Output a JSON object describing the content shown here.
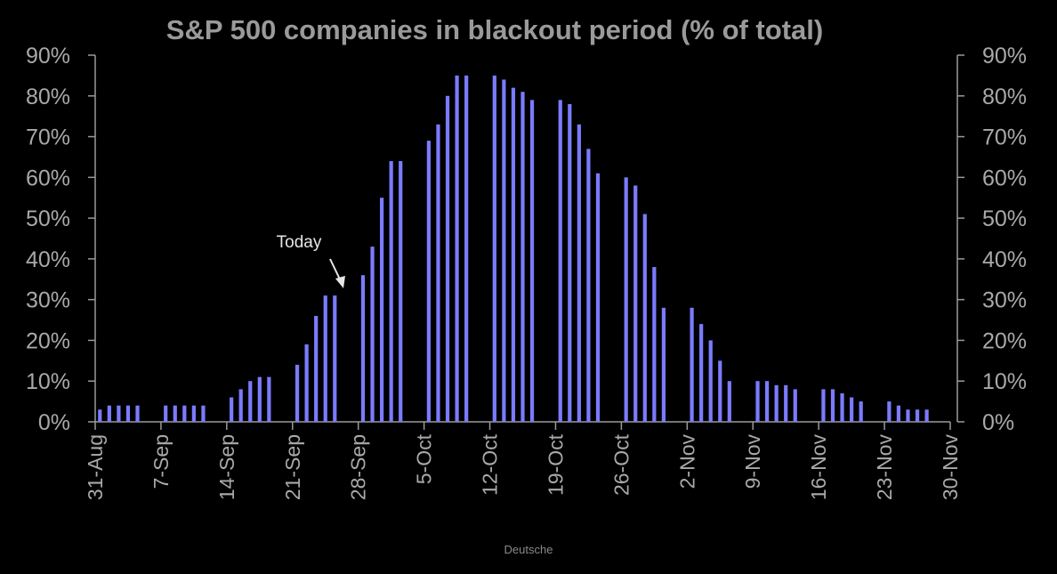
{
  "chart_data": {
    "type": "bar",
    "title": "S&P 500 companies in blackout period (% of total)",
    "ylim": [
      0,
      90
    ],
    "y_ticks": [
      "0%",
      "10%",
      "20%",
      "30%",
      "40%",
      "50%",
      "60%",
      "70%",
      "80%",
      "90%"
    ],
    "y_ticks_right": [
      "0%",
      "10%",
      "20%",
      "30%",
      "40%",
      "50%",
      "60%",
      "70%",
      "80%",
      "90%"
    ],
    "x_ticks": [
      "31-Aug",
      "7-Sep",
      "14-Sep",
      "21-Sep",
      "28-Sep",
      "5-Oct",
      "12-Oct",
      "19-Oct",
      "26-Oct",
      "2-Nov",
      "9-Nov",
      "16-Nov",
      "23-Nov",
      "30-Nov"
    ],
    "x": [
      "2020-08-31",
      "2020-09-01",
      "2020-09-02",
      "2020-09-03",
      "2020-09-04",
      "2020-09-07",
      "2020-09-08",
      "2020-09-09",
      "2020-09-10",
      "2020-09-11",
      "2020-09-14",
      "2020-09-15",
      "2020-09-16",
      "2020-09-17",
      "2020-09-18",
      "2020-09-21",
      "2020-09-22",
      "2020-09-23",
      "2020-09-24",
      "2020-09-25",
      "2020-09-28",
      "2020-09-29",
      "2020-09-30",
      "2020-10-01",
      "2020-10-02",
      "2020-10-05",
      "2020-10-06",
      "2020-10-07",
      "2020-10-08",
      "2020-10-09",
      "2020-10-12",
      "2020-10-13",
      "2020-10-14",
      "2020-10-15",
      "2020-10-16",
      "2020-10-19",
      "2020-10-20",
      "2020-10-21",
      "2020-10-22",
      "2020-10-23",
      "2020-10-26",
      "2020-10-27",
      "2020-10-28",
      "2020-10-29",
      "2020-10-30",
      "2020-11-02",
      "2020-11-03",
      "2020-11-04",
      "2020-11-05",
      "2020-11-06",
      "2020-11-09",
      "2020-11-10",
      "2020-11-11",
      "2020-11-12",
      "2020-11-13",
      "2020-11-16",
      "2020-11-17",
      "2020-11-18",
      "2020-11-19",
      "2020-11-20",
      "2020-11-23",
      "2020-11-24",
      "2020-11-25",
      "2020-11-26",
      "2020-11-27"
    ],
    "values": [
      3,
      4,
      4,
      4,
      4,
      4,
      4,
      4,
      4,
      4,
      6,
      8,
      10,
      11,
      11,
      14,
      19,
      26,
      31,
      31,
      36,
      43,
      55,
      64,
      64,
      69,
      73,
      80,
      85,
      85,
      85,
      84,
      82,
      81,
      79,
      79,
      78,
      73,
      67,
      61,
      60,
      58,
      51,
      38,
      28,
      28,
      24,
      20,
      15,
      10,
      10,
      10,
      9,
      9,
      8,
      8,
      8,
      7,
      6,
      5,
      5,
      4,
      3,
      3,
      3
    ],
    "bar_color": "#7b7bff",
    "grid": false,
    "annotation": {
      "text": "Today",
      "target_x": "2020-09-25"
    }
  },
  "source": "Deutsche"
}
